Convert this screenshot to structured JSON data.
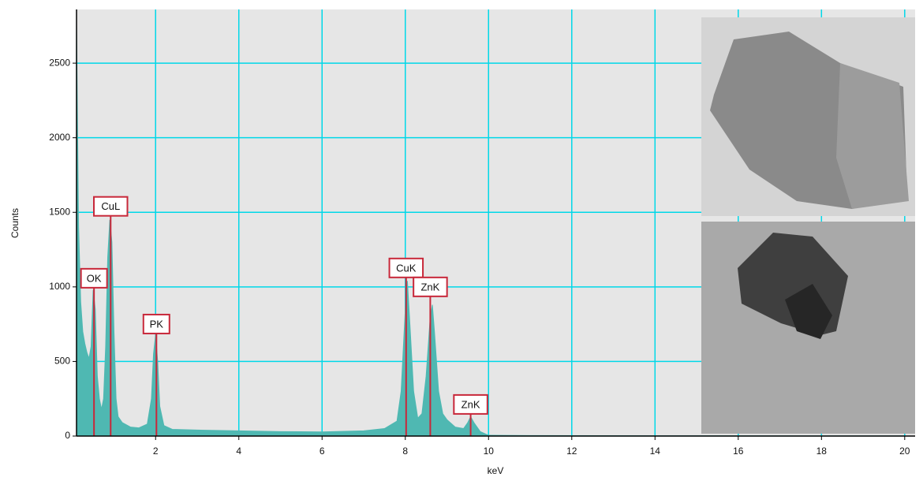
{
  "chart_data": {
    "type": "area",
    "x_label": "keV",
    "y_label": "Counts",
    "xlim": [
      0.1,
      20.25
    ],
    "ylim": [
      0,
      2860
    ],
    "xticks": [
      2,
      4,
      6,
      8,
      10,
      12,
      14,
      16,
      18,
      20
    ],
    "yticks": [
      0,
      500,
      1000,
      1500,
      2000,
      2500
    ],
    "grid": true,
    "color": "#4fb8b2",
    "x": [
      0.1,
      0.15,
      0.2,
      0.25,
      0.3,
      0.35,
      0.4,
      0.45,
      0.5,
      0.55,
      0.6,
      0.65,
      0.7,
      0.75,
      0.8,
      0.85,
      0.9,
      0.95,
      1.0,
      1.05,
      1.1,
      1.2,
      1.4,
      1.6,
      1.8,
      1.9,
      1.95,
      2.0,
      2.05,
      2.1,
      2.2,
      2.4,
      3,
      4,
      5,
      6,
      7,
      7.5,
      7.8,
      7.9,
      8.0,
      8.05,
      8.1,
      8.2,
      8.3,
      8.4,
      8.5,
      8.6,
      8.65,
      8.7,
      8.8,
      8.9,
      9.0,
      9.2,
      9.4,
      9.5,
      9.57,
      9.65,
      9.8,
      10.0,
      11,
      14,
      20
    ],
    "values": [
      2750,
      1400,
      900,
      700,
      620,
      560,
      520,
      600,
      980,
      850,
      400,
      250,
      180,
      250,
      600,
      1200,
      1450,
      1300,
      700,
      250,
      130,
      90,
      60,
      55,
      80,
      250,
      550,
      680,
      500,
      200,
      70,
      45,
      40,
      35,
      30,
      28,
      35,
      50,
      100,
      300,
      850,
      1040,
      800,
      300,
      120,
      150,
      400,
      800,
      880,
      700,
      300,
      150,
      110,
      60,
      50,
      90,
      130,
      90,
      30,
      5,
      3,
      2,
      1
    ],
    "annotations": [
      {
        "text": "OK",
        "x": 0.52,
        "y": 1058
      },
      {
        "text": "CuL",
        "x": 0.92,
        "y": 1540
      },
      {
        "text": "PK",
        "x": 2.02,
        "y": 751
      },
      {
        "text": "CuK",
        "x": 8.02,
        "y": 1127
      },
      {
        "text": "ZnK",
        "x": 8.6,
        "y": 1000
      },
      {
        "text": "ZnK",
        "x": 9.57,
        "y": 212
      }
    ]
  }
}
